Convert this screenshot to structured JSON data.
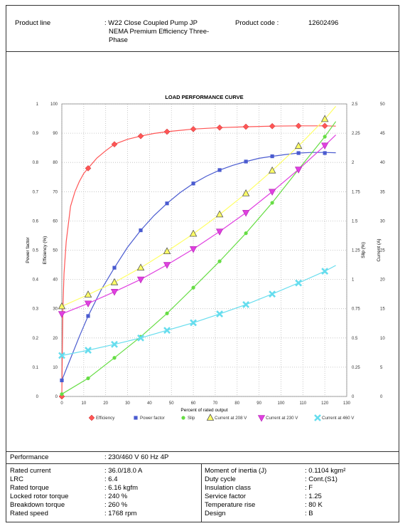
{
  "header": {
    "product_line_label": "Product line",
    "product_line_value_lines": [
      ": W22 Close Coupled Pump JP",
      "NEMA Premium Efficiency Three-",
      "Phase"
    ],
    "product_code_label": "Product code :",
    "product_code_value": "12602496"
  },
  "chart_data": {
    "type": "line",
    "title": "LOAD PERFORMANCE CURVE",
    "xlabel": "Percent of rated output",
    "x_ticks": [
      0,
      10,
      20,
      30,
      40,
      50,
      60,
      70,
      80,
      90,
      100,
      110,
      120,
      130
    ],
    "xlim": [
      0,
      130
    ],
    "grid": true,
    "legend_position": "bottom",
    "axes": {
      "power_factor": {
        "label": "Power factor",
        "ticks": [
          "0",
          "0.1",
          "0.2",
          "0.3",
          "0.4",
          "0.5",
          "0.6",
          "0.7",
          "0.8",
          "0.9",
          "1"
        ],
        "range": [
          0,
          1
        ]
      },
      "efficiency": {
        "label": "Efficiency (%)",
        "ticks": [
          "0",
          "10",
          "20",
          "30",
          "40",
          "50",
          "60",
          "70",
          "80",
          "90",
          "100"
        ],
        "range": [
          0,
          100
        ]
      },
      "slip": {
        "label": "Slip (%)",
        "ticks": [
          "0",
          "0.25",
          "0.5",
          "0.75",
          "1",
          "1.25",
          "1.5",
          "1.75",
          "2",
          "2.25",
          "2.5"
        ],
        "range": [
          0,
          2.5
        ]
      },
      "current": {
        "label": "Current (A)",
        "ticks": [
          "0",
          "5",
          "10",
          "15",
          "20",
          "25",
          "30",
          "35",
          "40",
          "45",
          "50"
        ],
        "range": [
          0,
          50
        ]
      }
    },
    "series": [
      {
        "name": "Efficiency",
        "axis": "efficiency",
        "color": "#ff5555",
        "marker": "diamond",
        "x": [
          0,
          12,
          24,
          36,
          48,
          60,
          72,
          84,
          96,
          108,
          120
        ],
        "y": [
          0,
          78,
          86.2,
          89,
          90.5,
          91.4,
          91.9,
          92.2,
          92.4,
          92.5,
          92.5
        ],
        "curve": [
          [
            0,
            0
          ],
          [
            0.5,
            30
          ],
          [
            1,
            42
          ],
          [
            2,
            53
          ],
          [
            4,
            65
          ],
          [
            6,
            70
          ],
          [
            8,
            73.5
          ],
          [
            10,
            76.2
          ],
          [
            12,
            78
          ],
          [
            16,
            81.5
          ],
          [
            20,
            84
          ],
          [
            24,
            86.2
          ],
          [
            30,
            87.9
          ],
          [
            36,
            89
          ],
          [
            42,
            89.9
          ],
          [
            48,
            90.5
          ],
          [
            60,
            91.4
          ],
          [
            72,
            91.9
          ],
          [
            84,
            92.2
          ],
          [
            96,
            92.4
          ],
          [
            108,
            92.5
          ],
          [
            120,
            92.5
          ],
          [
            125,
            92.4
          ]
        ]
      },
      {
        "name": "Power factor",
        "axis": "power_factor",
        "color": "#4a5bd0",
        "marker": "square",
        "x": [
          0,
          12,
          24,
          36,
          48,
          60,
          72,
          84,
          96,
          108,
          120
        ],
        "y": [
          0.055,
          0.275,
          0.44,
          0.568,
          0.66,
          0.728,
          0.774,
          0.803,
          0.821,
          0.832,
          0.832
        ],
        "curve": [
          [
            0,
            0.055
          ],
          [
            4,
            0.13
          ],
          [
            8,
            0.205
          ],
          [
            12,
            0.275
          ],
          [
            18,
            0.365
          ],
          [
            24,
            0.44
          ],
          [
            30,
            0.51
          ],
          [
            36,
            0.568
          ],
          [
            42,
            0.618
          ],
          [
            48,
            0.66
          ],
          [
            54,
            0.697
          ],
          [
            60,
            0.728
          ],
          [
            66,
            0.753
          ],
          [
            72,
            0.774
          ],
          [
            78,
            0.79
          ],
          [
            84,
            0.803
          ],
          [
            90,
            0.814
          ],
          [
            96,
            0.821
          ],
          [
            102,
            0.827
          ],
          [
            108,
            0.832
          ],
          [
            114,
            0.834
          ],
          [
            120,
            0.834
          ],
          [
            125,
            0.833
          ]
        ]
      },
      {
        "name": "Slip",
        "axis": "slip",
        "color": "#66dd44",
        "marker": "circle",
        "x": [
          0,
          12,
          24,
          36,
          48,
          60,
          72,
          84,
          96,
          108,
          120
        ],
        "y": [
          0.02,
          0.155,
          0.33,
          0.51,
          0.71,
          0.93,
          1.155,
          1.395,
          1.655,
          1.94,
          2.22
        ],
        "curve": [
          [
            0,
            0.02
          ],
          [
            12,
            0.155
          ],
          [
            24,
            0.33
          ],
          [
            36,
            0.51
          ],
          [
            48,
            0.71
          ],
          [
            60,
            0.93
          ],
          [
            72,
            1.155
          ],
          [
            84,
            1.395
          ],
          [
            96,
            1.655
          ],
          [
            108,
            1.94
          ],
          [
            120,
            2.22
          ],
          [
            125,
            2.35
          ]
        ]
      },
      {
        "name": "Current at 208 V",
        "axis": "current",
        "color": "#ffff66",
        "marker": "triangle",
        "x": [
          0,
          12,
          24,
          36,
          48,
          60,
          72,
          84,
          96,
          108,
          120
        ],
        "y": [
          15.4,
          17.4,
          19.5,
          22,
          24.8,
          27.8,
          31.1,
          34.7,
          38.6,
          42.8,
          47.4
        ],
        "curve": [
          [
            0,
            15.4
          ],
          [
            12,
            17.4
          ],
          [
            24,
            19.5
          ],
          [
            36,
            22
          ],
          [
            48,
            24.8
          ],
          [
            60,
            27.8
          ],
          [
            72,
            31.1
          ],
          [
            84,
            34.7
          ],
          [
            96,
            38.6
          ],
          [
            108,
            42.8
          ],
          [
            120,
            47.4
          ],
          [
            125,
            49.6
          ]
        ]
      },
      {
        "name": "Current at 230 V",
        "axis": "current",
        "color": "#e040e0",
        "marker": "triangle-down",
        "x": [
          0,
          12,
          24,
          36,
          48,
          60,
          72,
          84,
          96,
          108,
          120
        ],
        "y": [
          14.1,
          15.9,
          17.9,
          20,
          22.5,
          25.2,
          28.2,
          31.4,
          35,
          38.8,
          42.9
        ],
        "curve": [
          [
            0,
            14.1
          ],
          [
            12,
            15.9
          ],
          [
            24,
            17.9
          ],
          [
            36,
            20
          ],
          [
            48,
            22.5
          ],
          [
            60,
            25.2
          ],
          [
            72,
            28.2
          ],
          [
            84,
            31.4
          ],
          [
            96,
            35
          ],
          [
            108,
            38.8
          ],
          [
            120,
            42.9
          ],
          [
            125,
            44.7
          ]
        ]
      },
      {
        "name": "Current at 460 V",
        "axis": "current",
        "color": "#66ddee",
        "marker": "x",
        "x": [
          0,
          12,
          24,
          36,
          48,
          60,
          72,
          84,
          96,
          108,
          120
        ],
        "y": [
          7,
          7.9,
          8.9,
          10,
          11.3,
          12.6,
          14.1,
          15.7,
          17.5,
          19.4,
          21.4
        ],
        "curve": [
          [
            0,
            7
          ],
          [
            12,
            7.9
          ],
          [
            24,
            8.9
          ],
          [
            36,
            10
          ],
          [
            48,
            11.3
          ],
          [
            60,
            12.6
          ],
          [
            72,
            14.1
          ],
          [
            84,
            15.7
          ],
          [
            96,
            17.5
          ],
          [
            108,
            19.4
          ],
          [
            120,
            21.4
          ],
          [
            125,
            22.4
          ]
        ]
      }
    ]
  },
  "performance": {
    "label": "Performance",
    "value": ": 230/460 V 60 Hz 4P"
  },
  "specs_left": [
    {
      "label": "Rated current",
      "value": ": 36.0/18.0 A"
    },
    {
      "label": "LRC",
      "value": ": 6.4"
    },
    {
      "label": "Rated torque",
      "value": ": 6.16 kgfm"
    },
    {
      "label": "Locked rotor torque",
      "value": ": 240 %"
    },
    {
      "label": "Breakdown torque",
      "value": ": 260 %"
    },
    {
      "label": "Rated speed",
      "value": ": 1768 rpm"
    }
  ],
  "specs_right": [
    {
      "label": "Moment of inertia (J)",
      "value": ": 0.1104 kgm²"
    },
    {
      "label": "Duty cycle",
      "value": ": Cont.(S1)"
    },
    {
      "label": "Insulation class",
      "value": ": F"
    },
    {
      "label": "Service factor",
      "value": ": 1.25"
    },
    {
      "label": "Temperature rise",
      "value": ": 80 K"
    },
    {
      "label": "Design",
      "value": ": B"
    }
  ]
}
